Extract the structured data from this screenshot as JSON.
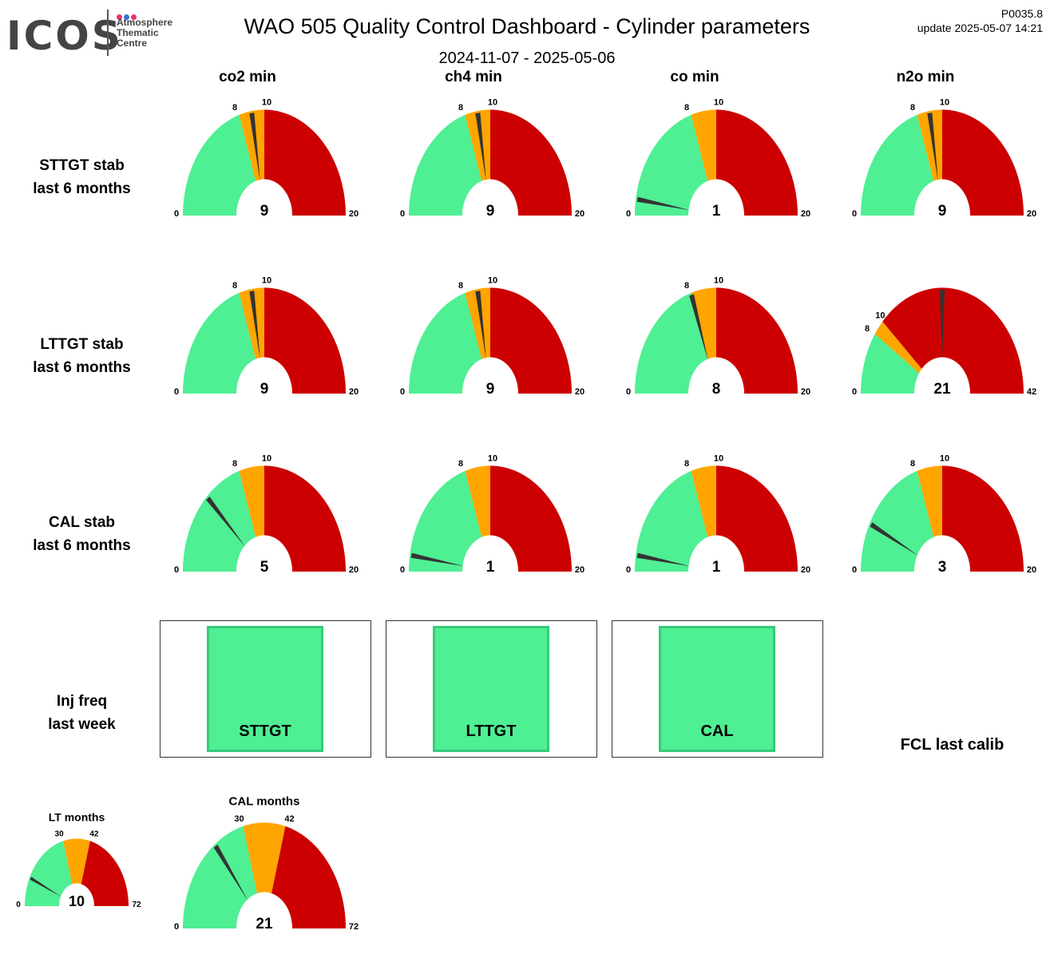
{
  "header": {
    "logo_text": "ICOS",
    "logo_sub": [
      "Atmosphere",
      "Thematic",
      "Centre"
    ],
    "logo_dot_colors": [
      "#e8336b",
      "#3a6fd8",
      "#e8336b"
    ],
    "title": "WAO 505 Quality Control Dashboard - Cylinder parameters",
    "date_range": "2024-11-07 - 2025-05-06",
    "code": "P0035.8",
    "update": "update  2025-05-07 14:21"
  },
  "columns": [
    "co2 min",
    "ch4 min",
    "co min",
    "n2o min"
  ],
  "rows": [
    {
      "label": [
        "STTGT stab",
        "last 6 months"
      ]
    },
    {
      "label": [
        "LTTGT stab",
        "last 6 months"
      ]
    },
    {
      "label": [
        "CAL stab",
        "last 6 months"
      ]
    },
    {
      "label": [
        "Inj freq",
        "last week"
      ]
    }
  ],
  "colors": {
    "green": "#4fef93",
    "orange": "#ffa500",
    "red": "#cc0000",
    "needle": "#333333"
  },
  "chart_data": [
    {
      "type": "gauge",
      "row": "STTGT stab",
      "column": "co2 min",
      "value": 9,
      "min": 0,
      "max": 20,
      "thresholds": [
        8,
        10
      ]
    },
    {
      "type": "gauge",
      "row": "STTGT stab",
      "column": "ch4 min",
      "value": 9,
      "min": 0,
      "max": 20,
      "thresholds": [
        8,
        10
      ]
    },
    {
      "type": "gauge",
      "row": "STTGT stab",
      "column": "co min",
      "value": 1,
      "min": 0,
      "max": 20,
      "thresholds": [
        8,
        10
      ]
    },
    {
      "type": "gauge",
      "row": "STTGT stab",
      "column": "n2o min",
      "value": 9,
      "min": 0,
      "max": 20,
      "thresholds": [
        8,
        10
      ]
    },
    {
      "type": "gauge",
      "row": "LTTGT stab",
      "column": "co2 min",
      "value": 9,
      "min": 0,
      "max": 20,
      "thresholds": [
        8,
        10
      ]
    },
    {
      "type": "gauge",
      "row": "LTTGT stab",
      "column": "ch4 min",
      "value": 9,
      "min": 0,
      "max": 20,
      "thresholds": [
        8,
        10
      ]
    },
    {
      "type": "gauge",
      "row": "LTTGT stab",
      "column": "co min",
      "value": 8,
      "min": 0,
      "max": 20,
      "thresholds": [
        8,
        10
      ]
    },
    {
      "type": "gauge",
      "row": "LTTGT stab",
      "column": "n2o min",
      "value": 21,
      "min": 0,
      "max": 42,
      "thresholds": [
        8,
        10
      ]
    },
    {
      "type": "gauge",
      "row": "CAL stab",
      "column": "co2 min",
      "value": 5,
      "min": 0,
      "max": 20,
      "thresholds": [
        8,
        10
      ]
    },
    {
      "type": "gauge",
      "row": "CAL stab",
      "column": "ch4 min",
      "value": 1,
      "min": 0,
      "max": 20,
      "thresholds": [
        8,
        10
      ]
    },
    {
      "type": "gauge",
      "row": "CAL stab",
      "column": "co min",
      "value": 1,
      "min": 0,
      "max": 20,
      "thresholds": [
        8,
        10
      ]
    },
    {
      "type": "gauge",
      "row": "CAL stab",
      "column": "n2o min",
      "value": 3,
      "min": 0,
      "max": 20,
      "thresholds": [
        8,
        10
      ]
    },
    {
      "type": "gauge",
      "title": "LT months",
      "value": 10,
      "min": 0,
      "max": 72,
      "thresholds": [
        30,
        42
      ]
    },
    {
      "type": "gauge",
      "title": "CAL months",
      "value": 21,
      "min": 0,
      "max": 72,
      "thresholds": [
        30,
        42
      ]
    }
  ],
  "inj_freq": [
    {
      "label": "STTGT",
      "status": "green"
    },
    {
      "label": "LTTGT",
      "status": "green"
    },
    {
      "label": "CAL",
      "status": "green"
    }
  ],
  "fcl_label": "FCL last calib"
}
